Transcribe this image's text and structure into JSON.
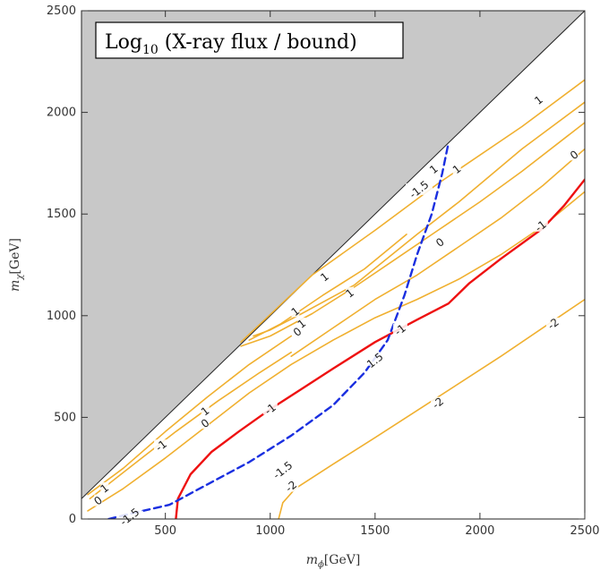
{
  "chart_data": {
    "type": "line",
    "title": "Log10 (X-ray flux / bound)",
    "title_main": "Log",
    "title_sub": "10",
    "title_rest": " (X-ray flux / bound)",
    "xlabel_main": "m",
    "xlabel_sub": "ϕ",
    "xlabel_rest": "[GeV]",
    "ylabel_main": "m",
    "ylabel_sub": "χ",
    "ylabel_rest": "[GeV]",
    "xlim": [
      100,
      2500
    ],
    "ylim": [
      0,
      2500
    ],
    "x_ticks": [
      {
        "value": 500,
        "label": "500"
      },
      {
        "value": 1000,
        "label": "1000"
      },
      {
        "value": 1500,
        "label": "1500"
      },
      {
        "value": 2000,
        "label": "2000"
      },
      {
        "value": 2500,
        "label": "2500"
      }
    ],
    "y_ticks": [
      {
        "value": 0,
        "label": "0"
      },
      {
        "value": 500,
        "label": "500"
      },
      {
        "value": 1000,
        "label": "1000"
      },
      {
        "value": 1500,
        "label": "1500"
      },
      {
        "value": 2000,
        "label": "2000"
      },
      {
        "value": 2500,
        "label": "2500"
      }
    ],
    "excluded_region": {
      "color": "#c8c8c8",
      "points": [
        [
          100,
          100
        ],
        [
          2500,
          2500
        ],
        [
          100,
          2500
        ]
      ]
    },
    "colors": {
      "orange": "#f0b030",
      "red": "#ee1111",
      "blue": "#1a2fe0",
      "gray": "#c8c8c8"
    },
    "series": [
      {
        "color": "#f0b030",
        "style": "solid",
        "points": [
          [
            860,
            870
          ],
          [
            1200,
            1200
          ],
          [
            1500,
            1420
          ],
          [
            1800,
            1650
          ],
          [
            2200,
            1930
          ],
          [
            2500,
            2160
          ]
        ]
      },
      {
        "color": "#f0b030",
        "style": "solid",
        "points": [
          [
            920,
            900
          ],
          [
            1000,
            930
          ],
          [
            1150,
            1010
          ],
          [
            1400,
            1150
          ],
          [
            1700,
            1400
          ],
          [
            1900,
            1560
          ],
          [
            2200,
            1820
          ],
          [
            2500,
            2050
          ]
        ]
      },
      {
        "color": "#f0b030",
        "style": "solid",
        "points": [
          [
            900,
            880
          ],
          [
            1050,
            960
          ],
          [
            1250,
            1100
          ],
          [
            1450,
            1230
          ],
          [
            1650,
            1400
          ]
        ]
      },
      {
        "color": "#f0b030",
        "style": "solid",
        "points": [
          [
            860,
            850
          ],
          [
            1000,
            900
          ],
          [
            1200,
            1010
          ],
          [
            1400,
            1140
          ],
          [
            1600,
            1280
          ],
          [
            1800,
            1420
          ],
          [
            2000,
            1560
          ],
          [
            2200,
            1710
          ],
          [
            2500,
            1950
          ]
        ]
      },
      {
        "color": "#f0b030",
        "style": "solid",
        "points": [
          [
            1100,
            800
          ],
          [
            1300,
            940
          ],
          [
            1500,
            1080
          ],
          [
            1700,
            1200
          ],
          [
            1900,
            1340
          ],
          [
            2100,
            1480
          ],
          [
            2300,
            1640
          ],
          [
            2500,
            1820
          ]
        ]
      },
      {
        "color": "#f0b030",
        "style": "solid",
        "points": [
          [
            130,
            120
          ],
          [
            300,
            250
          ],
          [
            500,
            430
          ],
          [
            700,
            600
          ],
          [
            900,
            760
          ],
          [
            1100,
            900
          ]
        ]
      },
      {
        "color": "#f0b030",
        "style": "solid",
        "points": [
          [
            140,
            100
          ],
          [
            350,
            270
          ],
          [
            550,
            430
          ],
          [
            750,
            580
          ],
          [
            950,
            720
          ],
          [
            1100,
            820
          ]
        ]
      },
      {
        "color": "#f0b030",
        "style": "solid",
        "points": [
          [
            130,
            40
          ],
          [
            300,
            150
          ],
          [
            500,
            300
          ],
          [
            700,
            460
          ],
          [
            900,
            620
          ],
          [
            1100,
            760
          ],
          [
            1300,
            880
          ],
          [
            1500,
            990
          ],
          [
            1700,
            1080
          ],
          [
            1900,
            1180
          ],
          [
            2100,
            1300
          ],
          [
            2300,
            1440
          ],
          [
            2500,
            1610
          ]
        ]
      },
      {
        "color": "#f0b030",
        "style": "solid",
        "points": [
          [
            1040,
            0
          ],
          [
            1060,
            80
          ],
          [
            1120,
            150
          ],
          [
            1300,
            270
          ],
          [
            1500,
            400
          ],
          [
            1800,
            600
          ],
          [
            2100,
            800
          ],
          [
            2500,
            1080
          ]
        ]
      },
      {
        "color": "#ee1111",
        "style": "solid",
        "points": [
          [
            550,
            0
          ],
          [
            560,
            100
          ],
          [
            620,
            220
          ],
          [
            720,
            330
          ],
          [
            850,
            430
          ],
          [
            1000,
            540
          ],
          [
            1150,
            640
          ],
          [
            1300,
            740
          ],
          [
            1500,
            870
          ],
          [
            1700,
            980
          ],
          [
            1850,
            1060
          ],
          [
            1950,
            1160
          ],
          [
            2100,
            1280
          ],
          [
            2300,
            1430
          ],
          [
            2400,
            1540
          ],
          [
            2500,
            1670
          ]
        ]
      },
      {
        "color": "#1a2fe0",
        "style": "dashed",
        "points": [
          [
            230,
            0
          ],
          [
            350,
            30
          ],
          [
            520,
            70
          ],
          [
            700,
            170
          ],
          [
            900,
            280
          ],
          [
            1100,
            410
          ],
          [
            1300,
            560
          ],
          [
            1450,
            720
          ],
          [
            1560,
            880
          ],
          [
            1640,
            1100
          ],
          [
            1700,
            1300
          ],
          [
            1770,
            1500
          ],
          [
            1820,
            1700
          ],
          [
            1850,
            1850
          ]
        ]
      }
    ],
    "contour_labels": [
      {
        "text": "1",
        "x": 1260,
        "y": 1190
      },
      {
        "text": "1",
        "x": 1380,
        "y": 1110
      },
      {
        "text": "1",
        "x": 1120,
        "y": 1020
      },
      {
        "text": "0",
        "x": 1130,
        "y": 920
      },
      {
        "text": "1",
        "x": 1150,
        "y": 960
      },
      {
        "text": "1",
        "x": 2280,
        "y": 2060
      },
      {
        "text": "1",
        "x": 1780,
        "y": 1720
      },
      {
        "text": "1",
        "x": 1890,
        "y": 1720
      },
      {
        "text": "0",
        "x": 2450,
        "y": 1790
      },
      {
        "text": "0",
        "x": 1810,
        "y": 1360
      },
      {
        "text": "-1",
        "x": 2290,
        "y": 1440
      },
      {
        "text": "-1",
        "x": 1620,
        "y": 930
      },
      {
        "text": "-1",
        "x": 1000,
        "y": 540
      },
      {
        "text": "-1",
        "x": 480,
        "y": 360
      },
      {
        "text": "-2",
        "x": 2350,
        "y": 960
      },
      {
        "text": "-2",
        "x": 1800,
        "y": 570
      },
      {
        "text": "-2",
        "x": 1100,
        "y": 160
      },
      {
        "text": "1",
        "x": 690,
        "y": 530
      },
      {
        "text": "0",
        "x": 690,
        "y": 470
      },
      {
        "text": "0",
        "x": 180,
        "y": 90
      },
      {
        "text": "1",
        "x": 210,
        "y": 150
      },
      {
        "text": "-1.5",
        "x": 1710,
        "y": 1620
      },
      {
        "text": "1.5",
        "x": 1500,
        "y": 780
      },
      {
        "text": "-1.5",
        "x": 1060,
        "y": 240
      },
      {
        "text": "-1.5",
        "x": 330,
        "y": 10
      }
    ]
  }
}
